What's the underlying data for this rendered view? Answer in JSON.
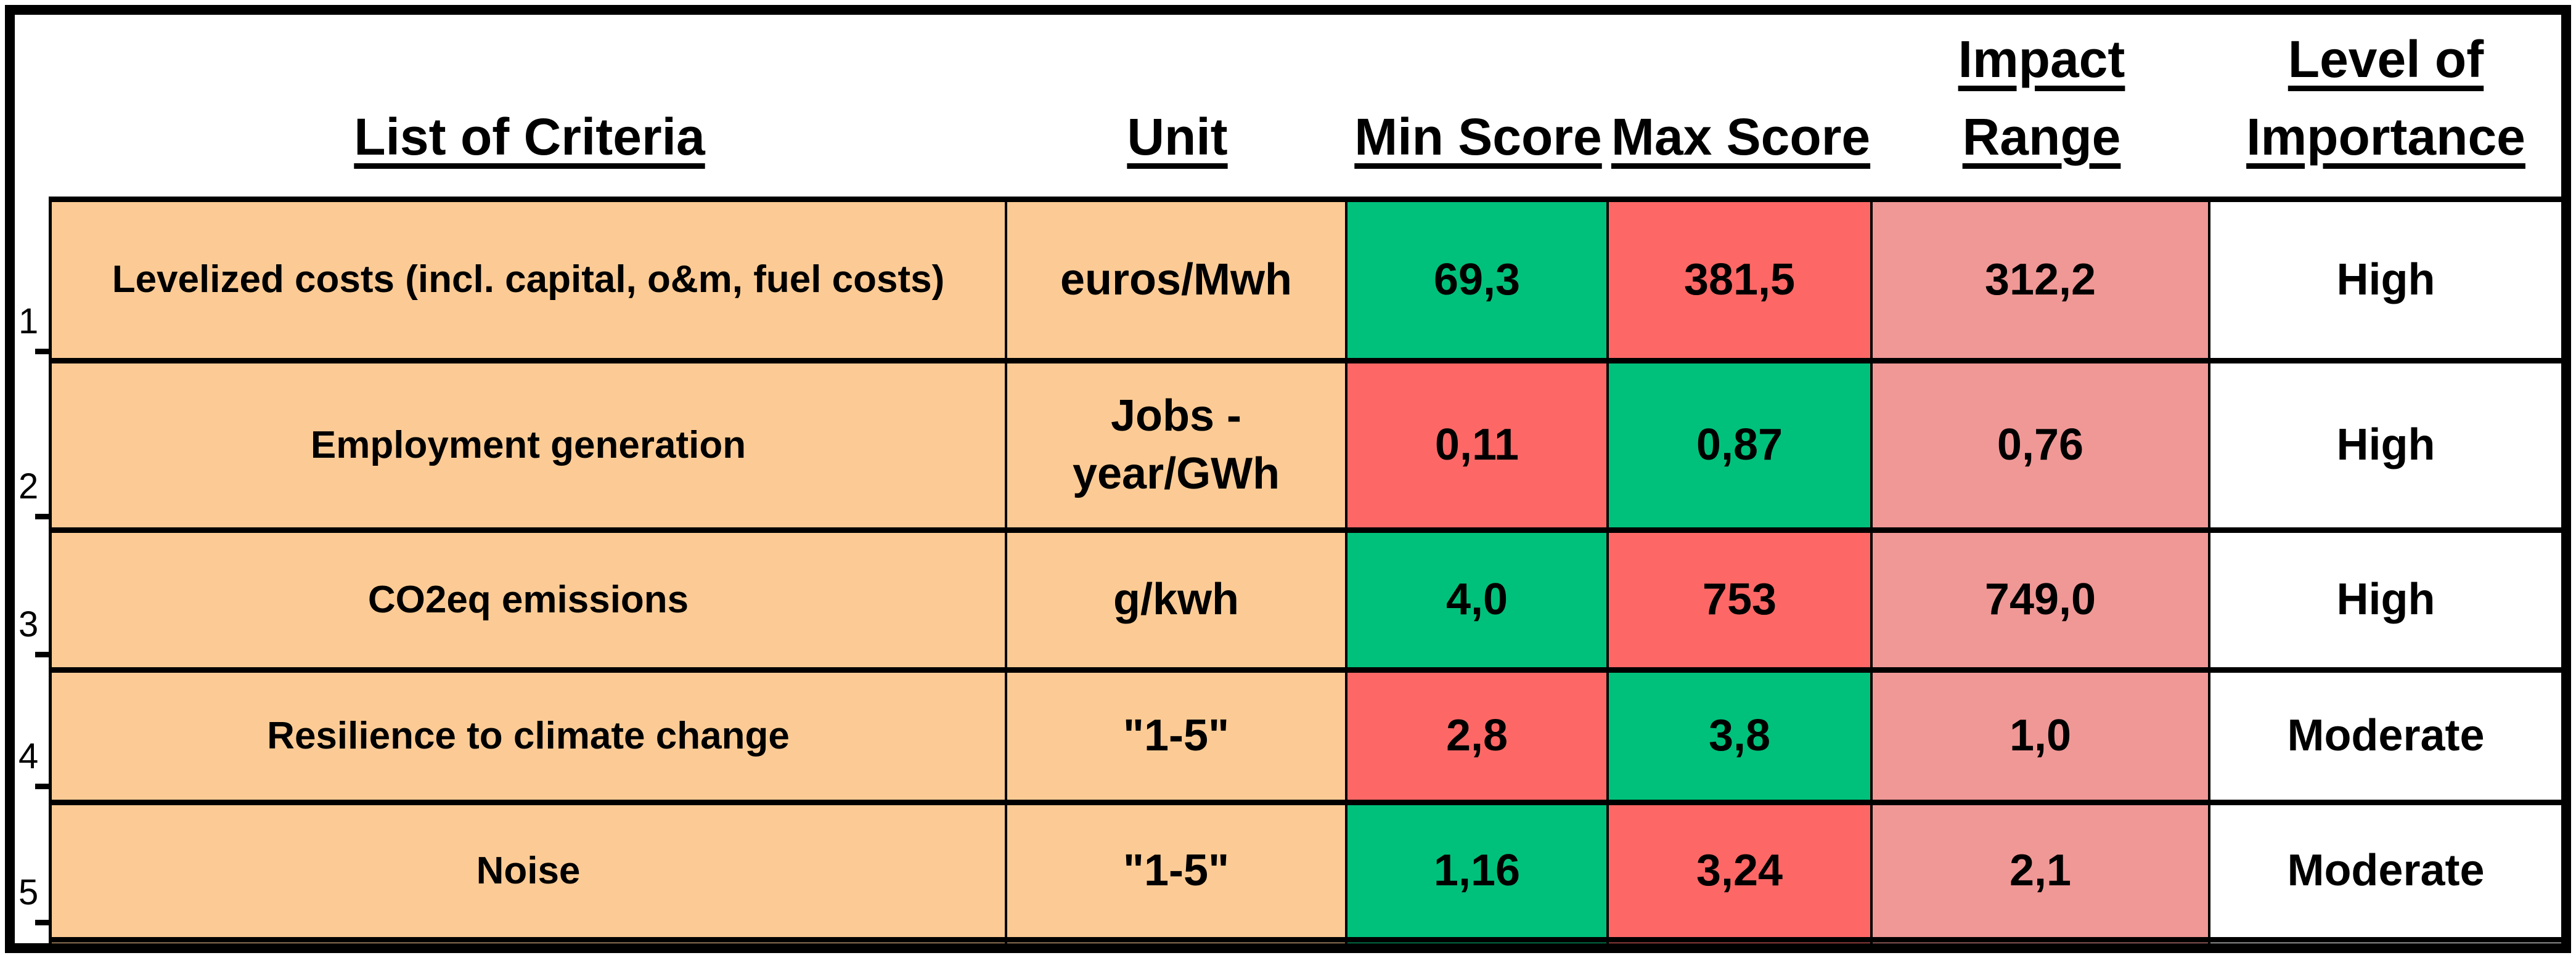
{
  "colors": {
    "cell_orange": "#FCCB95",
    "score_green": "#00C17B",
    "score_red": "#FD6866",
    "impact_pink": "#F09896",
    "border_black": "#000000",
    "background_white": "#FFFFFF"
  },
  "header": {
    "criteria": "List of Criteria",
    "unit": "Unit",
    "min_score": "Min Score",
    "max_score": "Max Score",
    "impact_range": "Impact Range",
    "importance_line1": "Level of",
    "importance_line2": "Importance"
  },
  "rows": [
    {
      "num": "1",
      "criteria": "Levelized costs (incl. capital, o&m, fuel costs)",
      "unit": "euros/Mwh",
      "min_score": "69,3",
      "min_color": "green",
      "max_score": "381,5",
      "max_color": "red",
      "impact_range": "312,2",
      "importance": "High"
    },
    {
      "num": "2",
      "criteria": "Employment generation",
      "unit": "Jobs - year/GWh",
      "min_score": "0,11",
      "min_color": "red",
      "max_score": "0,87",
      "max_color": "green",
      "impact_range": "0,76",
      "importance": "High"
    },
    {
      "num": "3",
      "criteria": "CO2eq emissions",
      "unit": "g/kwh",
      "min_score": "4,0",
      "min_color": "green",
      "max_score": "753",
      "max_color": "red",
      "impact_range": "749,0",
      "importance": "High"
    },
    {
      "num": "4",
      "criteria": "Resilience to climate change",
      "unit": "\"1-5\"",
      "min_score": "2,8",
      "min_color": "red",
      "max_score": "3,8",
      "max_color": "green",
      "impact_range": "1,0",
      "importance": "Moderate"
    },
    {
      "num": "5",
      "criteria": "Noise",
      "unit": "\"1-5\"",
      "min_score": "1,16",
      "min_color": "green",
      "max_score": "3,24",
      "max_color": "red",
      "impact_range": "2,1",
      "importance": "Moderate"
    }
  ],
  "partial_row": {
    "colors": [
      "orange",
      "orange",
      "green",
      "red",
      "pink",
      "white"
    ]
  }
}
